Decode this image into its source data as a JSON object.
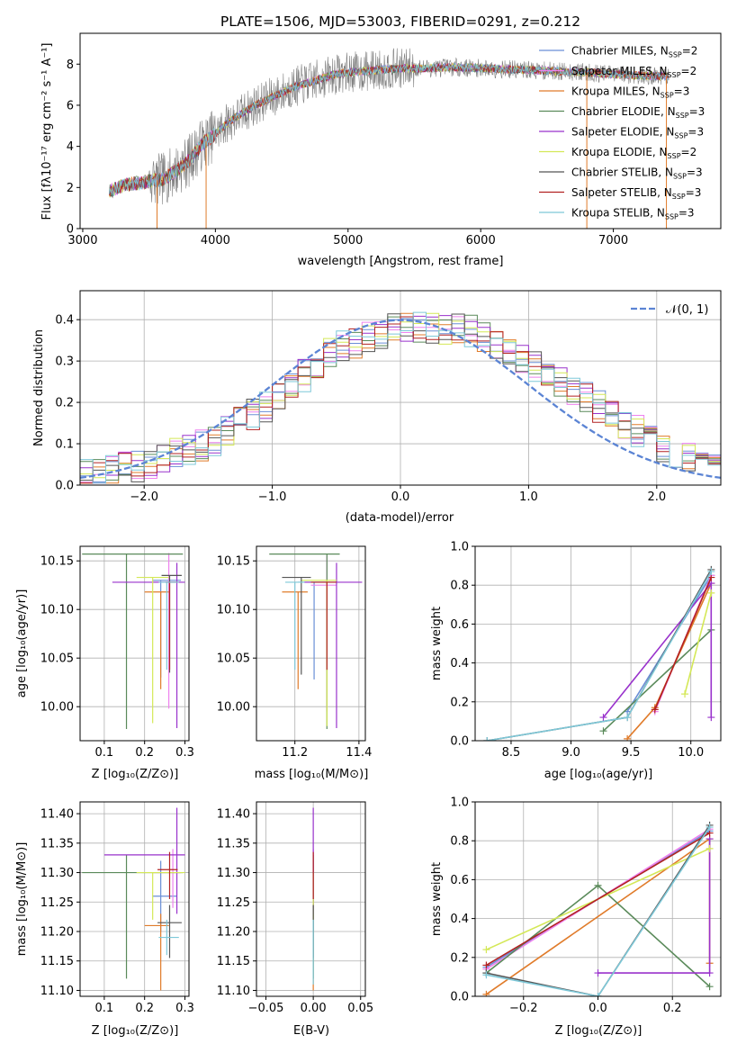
{
  "chart_data": [
    {
      "id": "spectrum",
      "type": "line",
      "title": "PLATE=1506, MJD=53003, FIBERID=0291, z=0.212",
      "xlabel": "wavelength [Angstrom, rest frame]",
      "ylabel": "Flux [fλ10⁻¹⁷ erg cm⁻² s⁻¹ A⁻¹]",
      "xlim": [
        2980,
        7810
      ],
      "ylim": [
        0,
        9.5
      ],
      "xticks": [
        3000,
        4000,
        5000,
        6000,
        7000
      ],
      "yticks": [
        0,
        2,
        4,
        6,
        8
      ],
      "grid": false,
      "legend_position": "upper right",
      "continuum": {
        "x": [
          3200,
          3300,
          3400,
          3500,
          3600,
          3700,
          3800,
          3900,
          4000,
          4100,
          4200,
          4300,
          4400,
          4500,
          4600,
          4700,
          4800,
          4900,
          5000,
          5200,
          5400,
          5600,
          5800,
          6000,
          6200,
          6400,
          6600,
          6800,
          7000,
          7200,
          7400
        ],
        "y": [
          1.8,
          2.1,
          2.2,
          2.3,
          2.4,
          2.8,
          3.3,
          4.1,
          4.6,
          5.2,
          5.6,
          6.0,
          6.3,
          6.6,
          6.9,
          7.1,
          7.3,
          7.5,
          7.6,
          7.7,
          7.8,
          7.8,
          7.85,
          7.8,
          7.75,
          7.7,
          7.65,
          7.6,
          7.5,
          7.45,
          7.4
        ]
      },
      "data_color": "#808080",
      "legend": [
        {
          "label": "Chabrier MILES, N",
          "sub": "SSP",
          "suffix": "=2",
          "color": "#6a8fd6"
        },
        {
          "label": "Salpeter MILES, N",
          "sub": "SSP",
          "suffix": "=2",
          "color": "#ee82ee"
        },
        {
          "label": "Kroupa MILES, N",
          "sub": "SSP",
          "suffix": "=3",
          "color": "#e07b2a"
        },
        {
          "label": "Chabrier ELODIE, N",
          "sub": "SSP",
          "suffix": "=3",
          "color": "#5a8a5a"
        },
        {
          "label": "Salpeter ELODIE, N",
          "sub": "SSP",
          "suffix": "=3",
          "color": "#9932cc"
        },
        {
          "label": "Kroupa ELODIE, N",
          "sub": "SSP",
          "suffix": "=2",
          "color": "#d4e857"
        },
        {
          "label": "Chabrier STELIB, N",
          "sub": "SSP",
          "suffix": "=3",
          "color": "#555555"
        },
        {
          "label": "Salpeter STELIB, N",
          "sub": "SSP",
          "suffix": "=3",
          "color": "#b22222"
        },
        {
          "label": "Kroupa STELIB, N",
          "sub": "SSP",
          "suffix": "=3",
          "color": "#7ec8d8"
        }
      ]
    },
    {
      "id": "residuals",
      "type": "line",
      "xlabel": "(data-model)/error",
      "ylabel": "Normed distribution",
      "xlim": [
        -2.5,
        2.5
      ],
      "ylim": [
        0,
        0.47
      ],
      "xticks": [
        -2,
        -1,
        0,
        1,
        2
      ],
      "yticks": [
        0.0,
        0.1,
        0.2,
        0.3,
        0.4
      ],
      "grid": true,
      "legend_position": "upper right",
      "gaussian_label": "𝒩(0, 1)",
      "gaussian_color": "#5b84d4",
      "hist_envelope": {
        "x": [
          -2.5,
          -2.0,
          -1.5,
          -1.0,
          -0.5,
          0.0,
          0.5,
          1.0,
          1.5,
          2.0,
          2.5
        ],
        "y": [
          0.02,
          0.05,
          0.1,
          0.2,
          0.33,
          0.38,
          0.38,
          0.3,
          0.2,
          0.1,
          0.04
        ]
      }
    },
    {
      "id": "age-vs-Z",
      "type": "scatter",
      "xlabel": "Z [log₁₀(Z/Z⊙)]",
      "ylabel": "age  [log₁₀(age/yr)]",
      "xlim": [
        0.04,
        0.31
      ],
      "ylim": [
        9.965,
        10.165
      ],
      "xticks": [
        0.1,
        0.2,
        0.3
      ],
      "yticks": [
        10.0,
        10.05,
        10.1,
        10.15
      ],
      "grid": true,
      "points": [
        {
          "x": 0.24,
          "y": 10.13,
          "xerr": [
            0.02,
            0.05
          ],
          "yerr": [
            0.1,
            0.0
          ],
          "color": "#6a8fd6"
        },
        {
          "x": 0.26,
          "y": 10.128,
          "xerr": [
            0.04,
            0.03
          ],
          "yerr": [
            0.13,
            0.03
          ],
          "color": "#ee82ee"
        },
        {
          "x": 0.24,
          "y": 10.118,
          "xerr": [
            0.04,
            0.02
          ],
          "yerr": [
            0.1,
            0.0
          ],
          "color": "#e07b2a"
        },
        {
          "x": 0.155,
          "y": 10.157,
          "xerr": [
            0.11,
            0.14
          ],
          "yerr": [
            0.18,
            0.0
          ],
          "color": "#5a8a5a"
        },
        {
          "x": 0.28,
          "y": 10.128,
          "xerr": [
            0.16,
            0.02
          ],
          "yerr": [
            0.15,
            0.02
          ],
          "color": "#9932cc"
        },
        {
          "x": 0.22,
          "y": 10.133,
          "xerr": [
            0.04,
            0.04
          ],
          "yerr": [
            0.15,
            0.0
          ],
          "color": "#d4e857"
        },
        {
          "x": 0.262,
          "y": 10.135,
          "xerr": [
            0.02,
            0.03
          ],
          "yerr": [
            0.1,
            0.0
          ],
          "color": "#555555"
        },
        {
          "x": 0.262,
          "y": 10.128,
          "xerr": [
            0.01,
            0.02
          ],
          "yerr": [
            0.09,
            0.0
          ],
          "color": "#b22222"
        },
        {
          "x": 0.255,
          "y": 10.128,
          "xerr": [
            0.02,
            0.03
          ],
          "yerr": [
            0.09,
            0.0
          ],
          "color": "#7ec8d8"
        }
      ]
    },
    {
      "id": "age-vs-mass",
      "type": "scatter",
      "xlabel": "mass [log₁₀(M/M⊙)]",
      "xlim": [
        11.08,
        11.42
      ],
      "ylim": [
        9.965,
        10.165
      ],
      "xticks": [
        11.2,
        11.4
      ],
      "yticks": [
        10.0,
        10.05,
        10.1,
        10.15
      ],
      "grid": true,
      "points": [
        {
          "x": 11.26,
          "y": 10.128,
          "xerr": [
            0.05,
            0.05
          ],
          "yerr": [
            0.1,
            0.0
          ],
          "color": "#6a8fd6"
        },
        {
          "x": 11.3,
          "y": 10.125,
          "xerr": [
            0.05,
            0.03
          ],
          "yerr": [
            0.13,
            0.03
          ],
          "color": "#ee82ee"
        },
        {
          "x": 11.21,
          "y": 10.118,
          "xerr": [
            0.05,
            0.03
          ],
          "yerr": [
            0.1,
            0.0
          ],
          "color": "#e07b2a"
        },
        {
          "x": 11.3,
          "y": 10.157,
          "xerr": [
            0.18,
            0.04
          ],
          "yerr": [
            0.18,
            0.0
          ],
          "color": "#5a8a5a"
        },
        {
          "x": 11.33,
          "y": 10.128,
          "xerr": [
            0.1,
            0.08
          ],
          "yerr": [
            0.15,
            0.02
          ],
          "color": "#9932cc"
        },
        {
          "x": 11.3,
          "y": 10.13,
          "xerr": [
            0.08,
            0.03
          ],
          "yerr": [
            0.15,
            0.0
          ],
          "color": "#d4e857"
        },
        {
          "x": 11.22,
          "y": 10.133,
          "xerr": [
            0.06,
            0.03
          ],
          "yerr": [
            0.1,
            0.0
          ],
          "color": "#555555"
        },
        {
          "x": 11.3,
          "y": 10.128,
          "xerr": [
            0.05,
            0.03
          ],
          "yerr": [
            0.09,
            0.0
          ],
          "color": "#b22222"
        },
        {
          "x": 11.2,
          "y": 10.128,
          "xerr": [
            0.03,
            0.03
          ],
          "yerr": [
            0.09,
            0.0
          ],
          "color": "#7ec8d8"
        }
      ]
    },
    {
      "id": "weight-vs-age",
      "type": "line",
      "xlabel": "age  [log₁₀(age/yr)]",
      "ylabel": "mass weight",
      "xlim": [
        8.2,
        10.25
      ],
      "ylim": [
        0,
        1.0
      ],
      "xticks": [
        8.5,
        9.0,
        9.5,
        10.0
      ],
      "yticks": [
        0.0,
        0.2,
        0.4,
        0.6,
        0.8,
        1.0
      ],
      "grid": true,
      "series": [
        {
          "color": "#6a8fd6",
          "x": [
            9.47,
            10.17
          ],
          "y": [
            0.15,
            0.85
          ]
        },
        {
          "color": "#ee82ee",
          "x": [
            9.7,
            10.17
          ],
          "y": [
            0.15,
            0.85
          ]
        },
        {
          "color": "#e07b2a",
          "x": [
            9.47,
            9.7,
            10.17
          ],
          "y": [
            0.01,
            0.17,
            0.81
          ]
        },
        {
          "color": "#5a8a5a",
          "x": [
            9.27,
            10.17
          ],
          "y": [
            0.05,
            0.57
          ]
        },
        {
          "color": "#9932cc",
          "x": [
            9.27,
            10.17,
            10.17
          ],
          "y": [
            0.12,
            0.81,
            0.12
          ]
        },
        {
          "color": "#d4e857",
          "x": [
            9.95,
            10.17
          ],
          "y": [
            0.24,
            0.76
          ]
        },
        {
          "color": "#555555",
          "x": [
            8.3,
            9.47,
            10.17
          ],
          "y": [
            0.0,
            0.12,
            0.88
          ]
        },
        {
          "color": "#b22222",
          "x": [
            9.7,
            10.17
          ],
          "y": [
            0.16,
            0.84
          ]
        },
        {
          "color": "#7ec8d8",
          "x": [
            8.3,
            9.47,
            10.17
          ],
          "y": [
            0.0,
            0.12,
            0.87
          ]
        }
      ]
    },
    {
      "id": "mass-vs-Z",
      "type": "scatter",
      "xlabel": "Z [log₁₀(Z/Z⊙)]",
      "ylabel": "mass [log₁₀(M/M⊙)]",
      "xlim": [
        0.04,
        0.31
      ],
      "ylim": [
        11.09,
        11.42
      ],
      "xticks": [
        0.1,
        0.2,
        0.3
      ],
      "yticks": [
        11.1,
        11.15,
        11.2,
        11.25,
        11.3,
        11.35,
        11.4
      ],
      "grid": true,
      "points": [
        {
          "x": 0.24,
          "y": 11.26,
          "xerr": [
            0.02,
            0.04
          ],
          "yerr": [
            0.06,
            0.06
          ],
          "color": "#6a8fd6"
        },
        {
          "x": 0.27,
          "y": 11.3,
          "xerr": [
            0.05,
            0.02
          ],
          "yerr": [
            0.06,
            0.04
          ],
          "color": "#ee82ee"
        },
        {
          "x": 0.24,
          "y": 11.21,
          "xerr": [
            0.04,
            0.02
          ],
          "yerr": [
            0.11,
            0.02
          ],
          "color": "#e07b2a"
        },
        {
          "x": 0.155,
          "y": 11.3,
          "xerr": [
            0.11,
            0.14
          ],
          "yerr": [
            0.18,
            0.03
          ],
          "color": "#5a8a5a"
        },
        {
          "x": 0.28,
          "y": 11.33,
          "xerr": [
            0.18,
            0.02
          ],
          "yerr": [
            0.1,
            0.08
          ],
          "color": "#9932cc"
        },
        {
          "x": 0.22,
          "y": 11.3,
          "xerr": [
            0.04,
            0.08
          ],
          "yerr": [
            0.08,
            0.0
          ],
          "color": "#d4e857"
        },
        {
          "x": 0.262,
          "y": 11.215,
          "xerr": [
            0.03,
            0.03
          ],
          "yerr": [
            0.06,
            0.03
          ],
          "color": "#555555"
        },
        {
          "x": 0.262,
          "y": 11.305,
          "xerr": [
            0.03,
            0.02
          ],
          "yerr": [
            0.05,
            0.03
          ],
          "color": "#b22222"
        },
        {
          "x": 0.255,
          "y": 11.19,
          "xerr": [
            0.02,
            0.03
          ],
          "yerr": [
            0.03,
            0.03
          ],
          "color": "#7ec8d8"
        }
      ]
    },
    {
      "id": "mass-vs-EBV",
      "type": "scatter",
      "xlabel": "E(B-V)",
      "xlim": [
        -0.06,
        0.055
      ],
      "ylim": [
        11.09,
        11.42
      ],
      "xticks": [
        -0.05,
        0.0,
        0.05
      ],
      "yticks": [
        11.1,
        11.15,
        11.2,
        11.25,
        11.3,
        11.35,
        11.4
      ],
      "grid": true,
      "points": [
        {
          "x": 0.0,
          "y": 11.26,
          "yerr": [
            0.06,
            0.06
          ],
          "color": "#6a8fd6"
        },
        {
          "x": 0.0,
          "y": 11.3,
          "yerr": [
            0.06,
            0.04
          ],
          "color": "#ee82ee"
        },
        {
          "x": 0.0,
          "y": 11.21,
          "yerr": [
            0.11,
            0.02
          ],
          "color": "#e07b2a"
        },
        {
          "x": 0.0,
          "y": 11.3,
          "yerr": [
            0.18,
            0.03
          ],
          "color": "#5a8a5a"
        },
        {
          "x": 0.0,
          "y": 11.33,
          "yerr": [
            0.1,
            0.08
          ],
          "color": "#9932cc"
        },
        {
          "x": 0.0,
          "y": 11.3,
          "yerr": [
            0.08,
            0.0
          ],
          "color": "#d4e857"
        },
        {
          "x": 0.0,
          "y": 11.215,
          "yerr": [
            0.06,
            0.03
          ],
          "color": "#555555"
        },
        {
          "x": 0.0,
          "y": 11.305,
          "yerr": [
            0.05,
            0.03
          ],
          "color": "#b22222"
        },
        {
          "x": 0.0,
          "y": 11.19,
          "yerr": [
            0.08,
            0.03
          ],
          "color": "#7ec8d8"
        }
      ]
    },
    {
      "id": "weight-vs-Z",
      "type": "line",
      "xlabel": "Z [log₁₀(Z/Z⊙)]",
      "ylabel": "mass weight",
      "xlim": [
        -0.33,
        0.33
      ],
      "ylim": [
        0,
        1.0
      ],
      "xticks": [
        -0.2,
        0.0,
        0.2
      ],
      "yticks": [
        0.0,
        0.2,
        0.4,
        0.6,
        0.8,
        1.0
      ],
      "grid": true,
      "series": [
        {
          "color": "#6a8fd6",
          "x": [
            -0.3,
            0.3
          ],
          "y": [
            0.15,
            0.85
          ]
        },
        {
          "color": "#ee82ee",
          "x": [
            -0.3,
            0.3
          ],
          "y": [
            0.14,
            0.86
          ]
        },
        {
          "color": "#e07b2a",
          "x": [
            -0.3,
            0.3,
            0.3
          ],
          "y": [
            0.01,
            0.81,
            0.17
          ]
        },
        {
          "color": "#5a8a5a",
          "x": [
            -0.3,
            0.0,
            0.3
          ],
          "y": [
            0.12,
            0.57,
            0.05
          ]
        },
        {
          "color": "#9932cc",
          "x": [
            0.0,
            0.3,
            0.3
          ],
          "y": [
            0.12,
            0.12,
            0.81
          ]
        },
        {
          "color": "#d4e857",
          "x": [
            -0.3,
            0.3
          ],
          "y": [
            0.24,
            0.76
          ]
        },
        {
          "color": "#555555",
          "x": [
            -0.3,
            0.0,
            0.3
          ],
          "y": [
            0.12,
            0.0,
            0.88
          ]
        },
        {
          "color": "#b22222",
          "x": [
            -0.3,
            0.3
          ],
          "y": [
            0.16,
            0.84
          ]
        },
        {
          "color": "#7ec8d8",
          "x": [
            -0.3,
            0.0,
            0.3
          ],
          "y": [
            0.11,
            0.0,
            0.87
          ]
        }
      ]
    }
  ]
}
